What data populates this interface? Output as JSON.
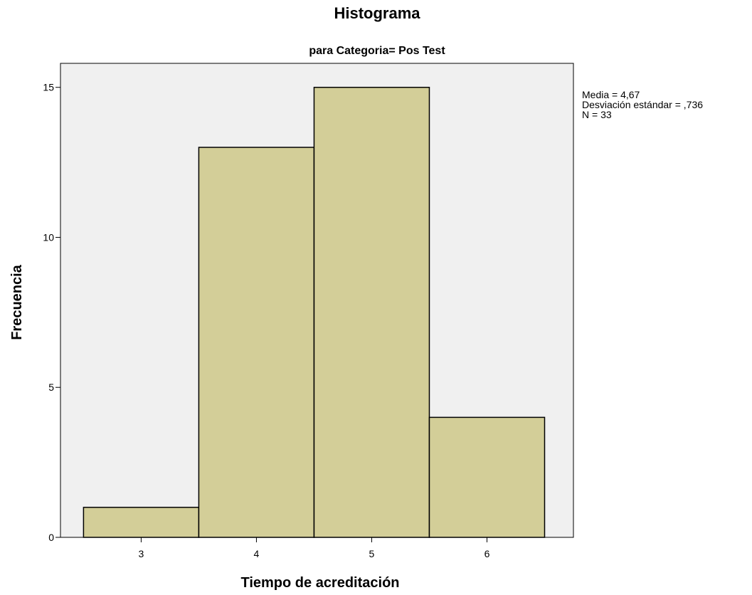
{
  "chart_data": {
    "type": "bar",
    "title": "Histograma",
    "subtitle": "para Categoria= Pos Test",
    "xlabel": "Tiempo de acreditación",
    "ylabel": "Frecuencia",
    "categories": [
      "3",
      "4",
      "5",
      "6"
    ],
    "x": [
      3,
      4,
      5,
      6
    ],
    "values": [
      1,
      13,
      15,
      4
    ],
    "xlim": [
      2.3,
      6.75
    ],
    "ylim": [
      0,
      15.8
    ],
    "yticks": [
      0,
      5,
      10,
      15
    ],
    "grid": false,
    "colors": {
      "bar_fill": "#d3ce98",
      "bar_stroke": "#000000",
      "plot_background": "#f0f0f0"
    },
    "statistics": {
      "lines": [
        "Media = 4,67",
        "Desviación estándar = ,736",
        "N = 33"
      ]
    }
  }
}
